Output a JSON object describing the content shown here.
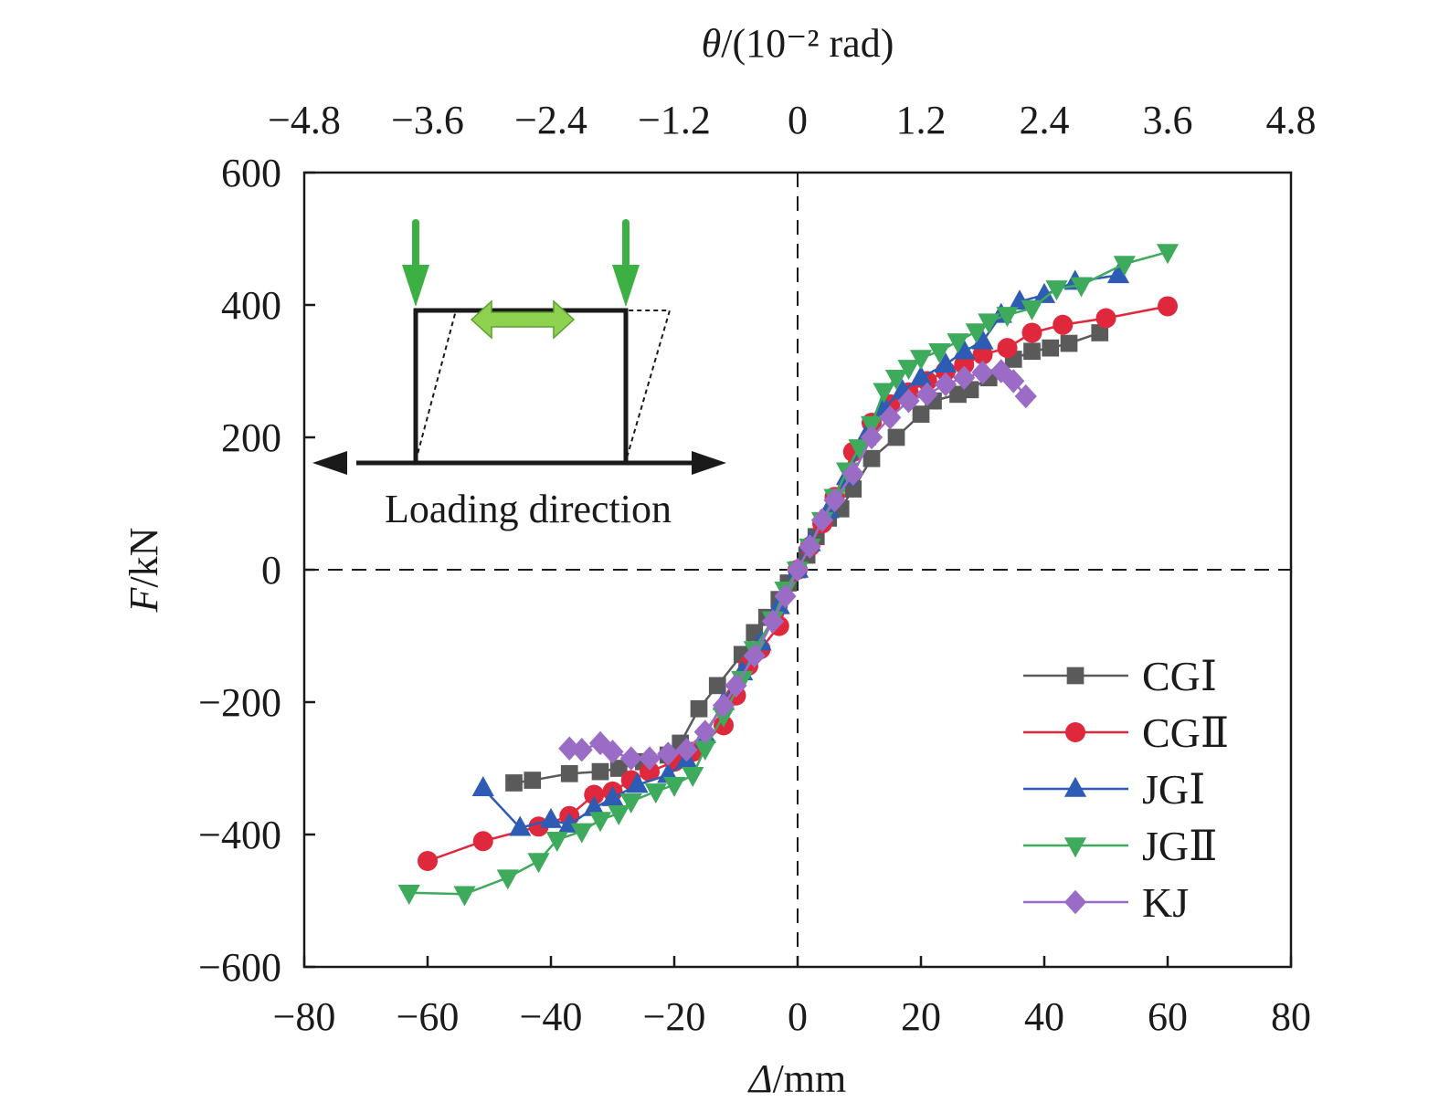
{
  "chart_data": {
    "type": "scatter",
    "xlabel_italic": "Δ",
    "xlabel_rest": "/mm",
    "ylabel_italic": "F",
    "ylabel_rest": "/kN",
    "top_label_italic": "θ",
    "top_label_rest": "/(10⁻² rad)",
    "xlim": [
      -80,
      80
    ],
    "ylim": [
      -600,
      600
    ],
    "x_ticks": [
      "−80",
      "−60",
      "−40",
      "−20",
      "0",
      "20",
      "40",
      "60",
      "80"
    ],
    "y_ticks": [
      "−600",
      "−400",
      "−200",
      "0",
      "200",
      "400",
      "600"
    ],
    "top_ticks": [
      "−4.8",
      "−3.6",
      "−2.4",
      "−1.2",
      "0",
      "1.2",
      "2.4",
      "3.6",
      "4.8"
    ],
    "inset_text": "Loading direction",
    "legend_position": "bottom-right",
    "series": [
      {
        "name": "CGⅠ",
        "color": "#5a5a5a",
        "marker": "square",
        "points": [
          [
            -46,
            -322
          ],
          [
            -43,
            -318
          ],
          [
            -37,
            -308
          ],
          [
            -32,
            -305
          ],
          [
            -29,
            -300
          ],
          [
            -25,
            -290
          ],
          [
            -21,
            -280
          ],
          [
            -19,
            -262
          ],
          [
            -16,
            -210
          ],
          [
            -13,
            -175
          ],
          [
            -9,
            -128
          ],
          [
            -7,
            -95
          ],
          [
            -5,
            -72
          ],
          [
            -3,
            -45
          ],
          [
            -1.5,
            -20
          ],
          [
            0,
            0
          ],
          [
            1.5,
            22
          ],
          [
            3,
            50
          ],
          [
            5,
            78
          ],
          [
            7,
            92
          ],
          [
            9,
            122
          ],
          [
            12,
            168
          ],
          [
            16,
            200
          ],
          [
            20,
            235
          ],
          [
            22,
            255
          ],
          [
            26,
            265
          ],
          [
            28,
            272
          ],
          [
            31,
            290
          ],
          [
            35,
            318
          ],
          [
            38,
            330
          ],
          [
            41,
            335
          ],
          [
            44,
            342
          ],
          [
            49,
            358
          ]
        ]
      },
      {
        "name": "CGⅡ",
        "color": "#e0283d",
        "marker": "circle",
        "points": [
          [
            -60,
            -440
          ],
          [
            -51,
            -410
          ],
          [
            -42,
            -388
          ],
          [
            -37,
            -372
          ],
          [
            -33,
            -340
          ],
          [
            -30,
            -335
          ],
          [
            -27,
            -318
          ],
          [
            -24,
            -305
          ],
          [
            -20,
            -290
          ],
          [
            -17,
            -275
          ],
          [
            -12,
            -235
          ],
          [
            -10,
            -190
          ],
          [
            -8,
            -145
          ],
          [
            -6,
            -120
          ],
          [
            -3,
            -85
          ],
          [
            0,
            0
          ],
          [
            2,
            35
          ],
          [
            4,
            70
          ],
          [
            6,
            110
          ],
          [
            9,
            178
          ],
          [
            12,
            222
          ],
          [
            15,
            250
          ],
          [
            18,
            268
          ],
          [
            21,
            285
          ],
          [
            24,
            300
          ],
          [
            27,
            310
          ],
          [
            30,
            325
          ],
          [
            34,
            335
          ],
          [
            38,
            358
          ],
          [
            43,
            370
          ],
          [
            50,
            380
          ],
          [
            60,
            398
          ]
        ]
      },
      {
        "name": "JGⅠ",
        "color": "#2e5bb3",
        "marker": "triangle-up",
        "points": [
          [
            -51,
            -330
          ],
          [
            -45,
            -390
          ],
          [
            -40,
            -378
          ],
          [
            -37,
            -385
          ],
          [
            -33,
            -360
          ],
          [
            -30,
            -345
          ],
          [
            -26,
            -325
          ],
          [
            -21,
            -310
          ],
          [
            -18,
            -288
          ],
          [
            -15,
            -250
          ],
          [
            -12,
            -200
          ],
          [
            -9,
            -155
          ],
          [
            -6,
            -110
          ],
          [
            -3,
            -55
          ],
          [
            0,
            0
          ],
          [
            2,
            40
          ],
          [
            5,
            90
          ],
          [
            8,
            140
          ],
          [
            11,
            200
          ],
          [
            14,
            245
          ],
          [
            17,
            270
          ],
          [
            20,
            290
          ],
          [
            24,
            310
          ],
          [
            27,
            330
          ],
          [
            30,
            345
          ],
          [
            33,
            385
          ],
          [
            36,
            405
          ],
          [
            40,
            415
          ],
          [
            45,
            435
          ],
          [
            52,
            445
          ]
        ]
      },
      {
        "name": "JGⅡ",
        "color": "#3daa5c",
        "marker": "triangle-down",
        "points": [
          [
            -63,
            -488
          ],
          [
            -54,
            -490
          ],
          [
            -47,
            -465
          ],
          [
            -42,
            -440
          ],
          [
            -39,
            -408
          ],
          [
            -35,
            -395
          ],
          [
            -32,
            -378
          ],
          [
            -29,
            -368
          ],
          [
            -27,
            -350
          ],
          [
            -23,
            -335
          ],
          [
            -20,
            -325
          ],
          [
            -17,
            -310
          ],
          [
            -15,
            -270
          ],
          [
            -12,
            -220
          ],
          [
            -9,
            -165
          ],
          [
            -7,
            -120
          ],
          [
            -4,
            -75
          ],
          [
            -2,
            -30
          ],
          [
            0,
            0
          ],
          [
            2,
            35
          ],
          [
            4,
            75
          ],
          [
            6,
            110
          ],
          [
            8,
            150
          ],
          [
            10,
            185
          ],
          [
            12,
            220
          ],
          [
            14,
            270
          ],
          [
            16,
            290
          ],
          [
            18,
            305
          ],
          [
            20,
            320
          ],
          [
            23,
            330
          ],
          [
            26,
            345
          ],
          [
            29,
            360
          ],
          [
            31,
            375
          ],
          [
            34,
            385
          ],
          [
            38,
            395
          ],
          [
            42,
            425
          ],
          [
            46,
            430
          ],
          [
            53,
            462
          ],
          [
            60,
            480
          ]
        ]
      },
      {
        "name": "KJ",
        "color": "#9b6cc6",
        "marker": "diamond",
        "points": [
          [
            -37,
            -270
          ],
          [
            -35,
            -272
          ],
          [
            -32,
            -262
          ],
          [
            -30,
            -275
          ],
          [
            -27,
            -285
          ],
          [
            -24,
            -285
          ],
          [
            -21,
            -278
          ],
          [
            -18,
            -272
          ],
          [
            -15,
            -245
          ],
          [
            -12,
            -205
          ],
          [
            -10,
            -175
          ],
          [
            -7,
            -130
          ],
          [
            -4,
            -78
          ],
          [
            -2,
            -40
          ],
          [
            0,
            0
          ],
          [
            2,
            35
          ],
          [
            4,
            75
          ],
          [
            6,
            105
          ],
          [
            9,
            145
          ],
          [
            12,
            200
          ],
          [
            15,
            230
          ],
          [
            18,
            255
          ],
          [
            21,
            265
          ],
          [
            24,
            280
          ],
          [
            27,
            290
          ],
          [
            30,
            298
          ],
          [
            33,
            300
          ],
          [
            35,
            285
          ],
          [
            37,
            262
          ]
        ]
      }
    ]
  }
}
